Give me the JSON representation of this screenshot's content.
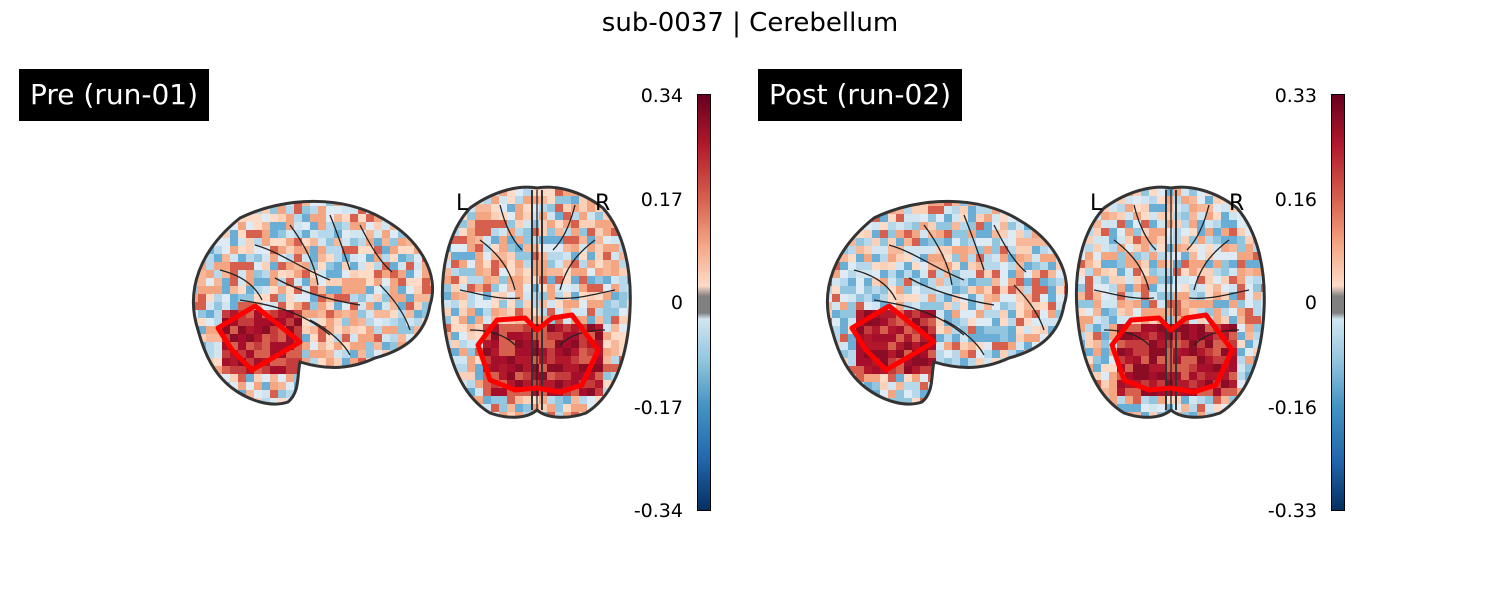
{
  "title": "sub-0037 | Cerebellum",
  "colors": {
    "roi_outline": "#ff0000",
    "cmap_high": "#67001f",
    "cmap_mid_pos": "#f4a582",
    "cmap_zero": "#808080",
    "cmap_mid_neg": "#92c5de",
    "cmap_low": "#053061",
    "label_bg": "#000000",
    "label_text": "#ffffff"
  },
  "chart_data": [
    {
      "type": "heatmap",
      "panel_label": "Pre (run-01)",
      "views": [
        "sagittal",
        "axial"
      ],
      "orientation_labels": [
        "L",
        "R"
      ],
      "colorbar": {
        "colormap": "RdBu_r",
        "vmin": -0.34,
        "vmax": 0.34,
        "ticks": [
          "0.34",
          "0.17",
          "0",
          "-0.17",
          "-0.34"
        ],
        "threshold_band": "gray around 0"
      },
      "roi": "Cerebellum"
    },
    {
      "type": "heatmap",
      "panel_label": "Post (run-02)",
      "views": [
        "sagittal",
        "axial"
      ],
      "orientation_labels": [
        "L",
        "R"
      ],
      "colorbar": {
        "colormap": "RdBu_r",
        "vmin": -0.33,
        "vmax": 0.33,
        "ticks": [
          "0.33",
          "0.16",
          "0",
          "-0.16",
          "-0.33"
        ],
        "threshold_band": "gray around 0"
      },
      "roi": "Cerebellum"
    }
  ]
}
